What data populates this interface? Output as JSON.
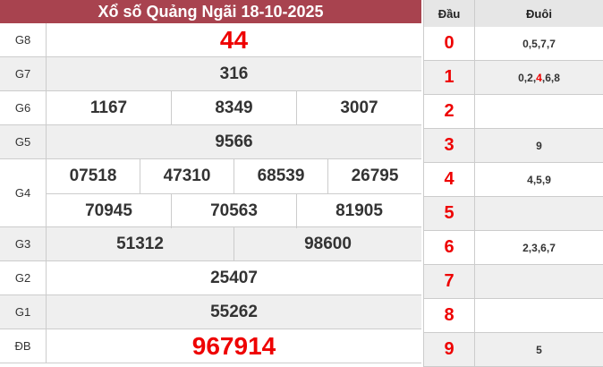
{
  "title": "Xổ số Quảng Ngãi 18-10-2025",
  "prizes": [
    {
      "label": "G8",
      "rows": [
        [
          "44"
        ]
      ],
      "highlight": true
    },
    {
      "label": "G7",
      "rows": [
        [
          "316"
        ]
      ]
    },
    {
      "label": "G6",
      "rows": [
        [
          "1167",
          "8349",
          "3007"
        ]
      ]
    },
    {
      "label": "G5",
      "rows": [
        [
          "9566"
        ]
      ]
    },
    {
      "label": "G4",
      "rows": [
        [
          "07518",
          "47310",
          "68539",
          "26795"
        ],
        [
          "70945",
          "70563",
          "81905"
        ]
      ]
    },
    {
      "label": "G3",
      "rows": [
        [
          "51312",
          "98600"
        ]
      ]
    },
    {
      "label": "G2",
      "rows": [
        [
          "25407"
        ]
      ]
    },
    {
      "label": "G1",
      "rows": [
        [
          "55262"
        ]
      ]
    },
    {
      "label": "ĐB",
      "rows": [
        [
          "967914"
        ]
      ],
      "highlight": true
    }
  ],
  "loto": {
    "head_label": "Đầu",
    "tail_label": "Đuôi",
    "rows": [
      {
        "head": "0",
        "tails": [
          "0",
          "5",
          "7",
          "7"
        ]
      },
      {
        "head": "1",
        "tails": [
          "0",
          "2",
          "4",
          "6",
          "8"
        ],
        "red_index": 2
      },
      {
        "head": "2",
        "tails": []
      },
      {
        "head": "3",
        "tails": [
          "9"
        ]
      },
      {
        "head": "4",
        "tails": [
          "4",
          "5",
          "9"
        ]
      },
      {
        "head": "5",
        "tails": []
      },
      {
        "head": "6",
        "tails": [
          "2",
          "3",
          "6",
          "7"
        ]
      },
      {
        "head": "7",
        "tails": []
      },
      {
        "head": "8",
        "tails": []
      },
      {
        "head": "9",
        "tails": [
          "5"
        ]
      }
    ]
  },
  "colors": {
    "header": "#a8434f",
    "highlight": "#ee0000"
  }
}
